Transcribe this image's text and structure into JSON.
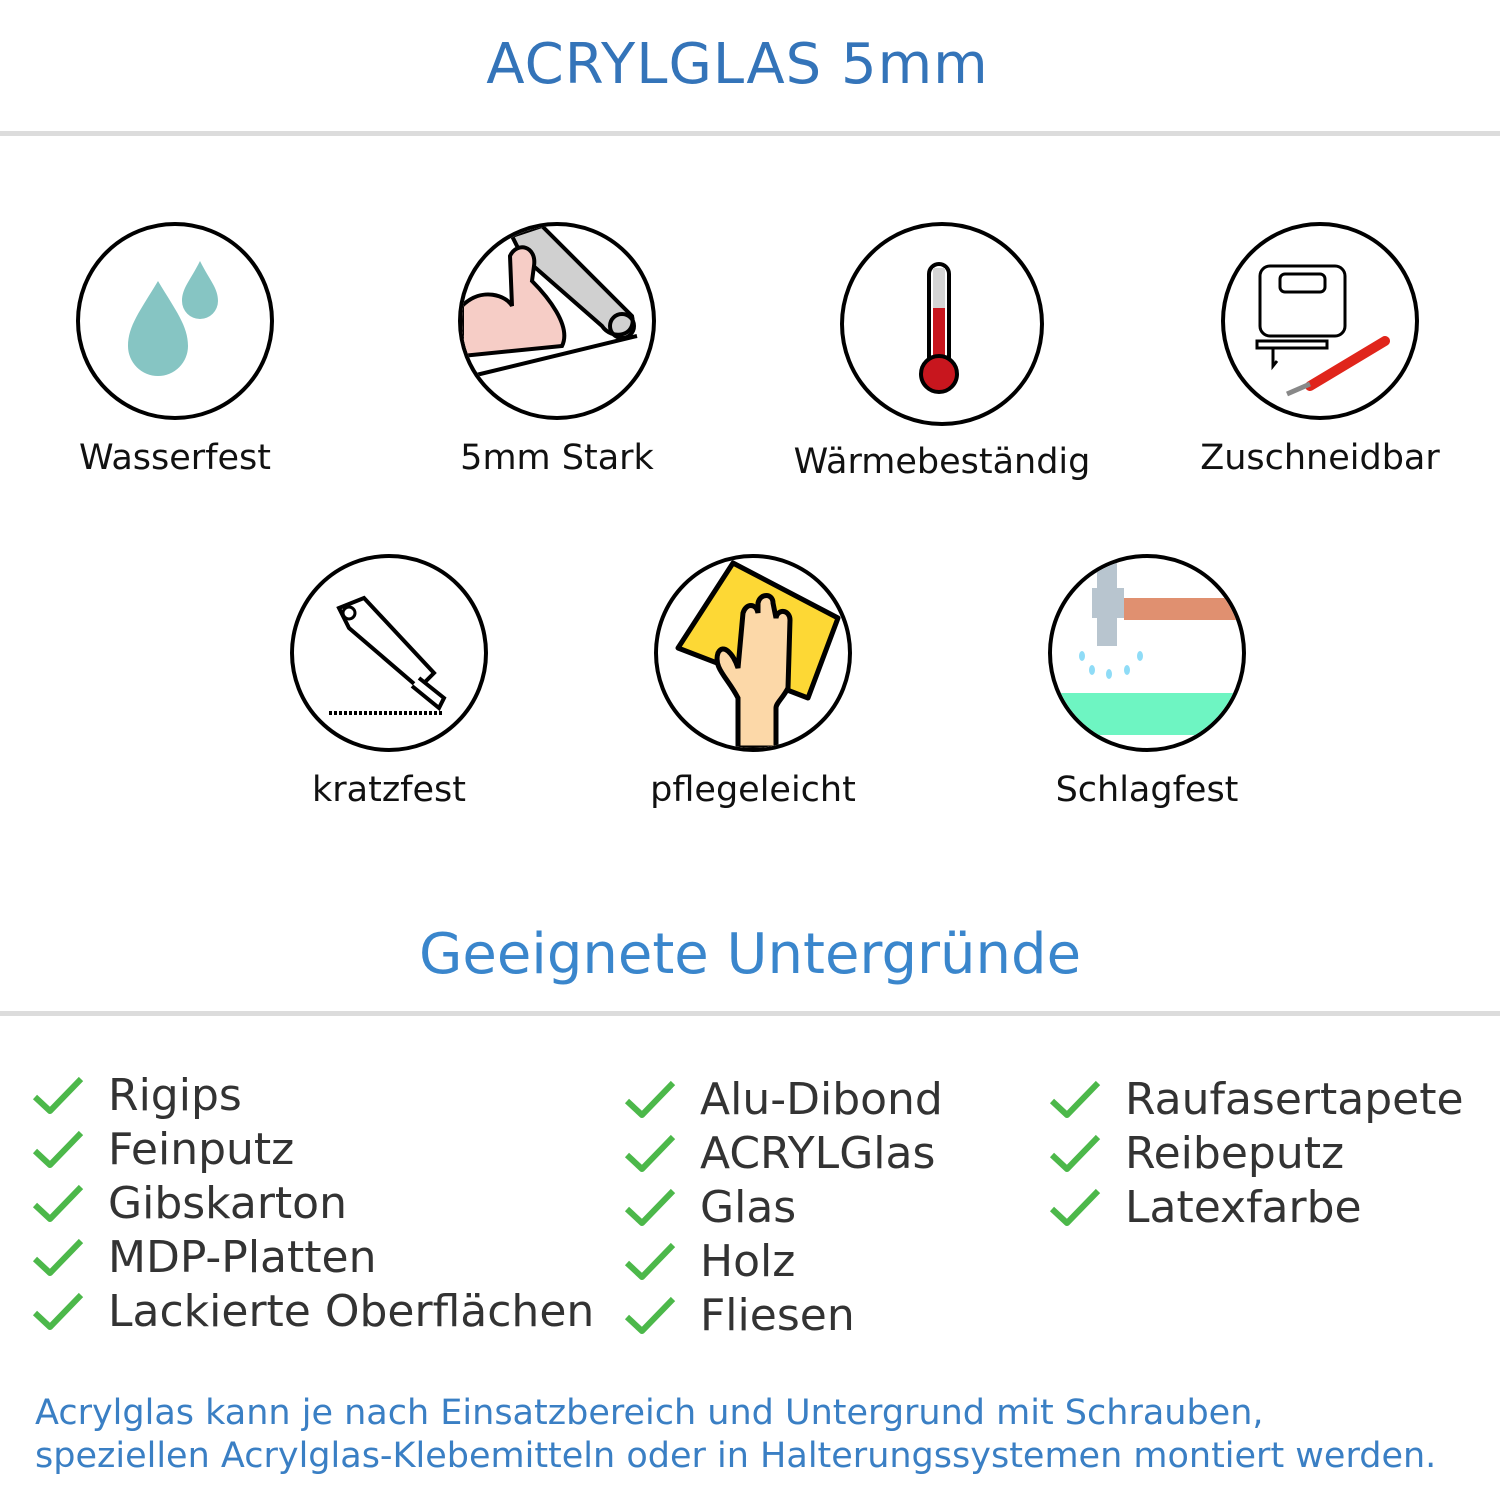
{
  "header": {
    "title": "ACRYLGLAS 5mm"
  },
  "features": [
    {
      "label": "Wasserfest",
      "icon": "water-drops-icon"
    },
    {
      "label": "5mm Stark",
      "icon": "strong-arm-icon"
    },
    {
      "label": "Wärmebeständig",
      "icon": "thermometer-icon"
    },
    {
      "label": "Zuschneidbar",
      "icon": "jigsaw-cutter-icon"
    },
    {
      "label": "kratzfest",
      "icon": "box-cutter-icon"
    },
    {
      "label": "pflegeleicht",
      "icon": "cleaning-hand-icon"
    },
    {
      "label": "Schlagfest",
      "icon": "hammer-icon"
    }
  ],
  "surfaces": {
    "title": "Geeignete Untergründe",
    "columns": [
      [
        "Rigips",
        "Feinputz",
        "Gibskarton",
        "MDP-Platten",
        "Lackierte Oberflächen"
      ],
      [
        "Alu-Dibond",
        "ACRYLGlas",
        "Glas",
        "Holz",
        "Fliesen"
      ],
      [
        "Raufasertapete",
        "Reibeputz",
        "Latexfarbe"
      ]
    ]
  },
  "footer": {
    "line1": "Acrylglas kann je nach Einsatzbereich und Untergrund mit Schrauben,",
    "line2": "speziellen Acrylglas-Klebemitteln oder in Halterungssystemen montiert werden."
  },
  "colors": {
    "title": "#3474b9",
    "check": "#4cb84a",
    "footer": "#3a7fc4"
  }
}
